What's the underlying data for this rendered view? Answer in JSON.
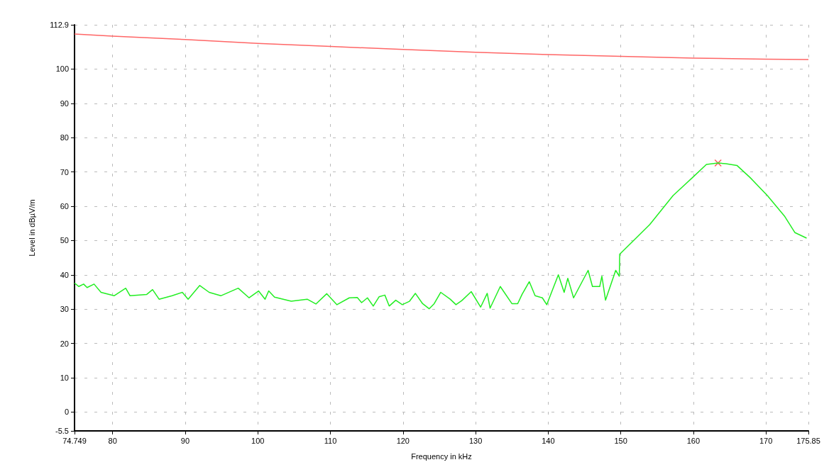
{
  "chart_data": {
    "type": "line",
    "xlabel": "Frequency in kHz",
    "ylabel": "Level in dBµV/m",
    "xlim": [
      74.749,
      175.85
    ],
    "xticks": [
      74.749,
      80,
      90,
      100,
      110,
      120,
      130,
      140,
      150,
      160,
      170,
      175.85
    ],
    "ylim": [
      -5.5,
      112.9
    ],
    "yticks": [
      -5.5,
      0,
      10,
      20,
      30,
      40,
      50,
      60,
      70,
      80,
      90,
      100,
      112.9
    ],
    "grid": true,
    "marker": "none",
    "line_style": "solid",
    "series": [
      {
        "color": "#ff6666",
        "x": [
          74.749,
          80,
          90,
          100,
          110,
          120,
          130,
          140,
          150,
          160,
          170,
          175.85
        ],
        "values": [
          110.2,
          109.6,
          108.6,
          107.5,
          106.6,
          105.7,
          104.9,
          104.2,
          103.7,
          103.2,
          102.9,
          102.8
        ]
      },
      {
        "color": "#22ee22",
        "x": [
          74.75,
          75.33,
          76.0,
          76.48,
          77.44,
          78.4,
          80.2,
          81.8,
          82.4,
          84.7,
          85.5,
          86.4,
          88.2,
          89.6,
          90.4,
          92.0,
          93.3,
          94.9,
          97.3,
          98.8,
          100.1,
          101.0,
          101.5,
          102.3,
          104.6,
          106.8,
          108.0,
          109.5,
          110.9,
          112.6,
          113.7,
          114.3,
          115.1,
          115.9,
          116.7,
          117.5,
          118.1,
          119.0,
          119.9,
          120.9,
          121.7,
          122.7,
          123.6,
          124.3,
          125.2,
          126.5,
          127.3,
          128.1,
          129.4,
          130.7,
          131.6,
          132.0,
          133.4,
          135.0,
          135.8,
          136.4,
          137.4,
          138.2,
          139.2,
          139.8,
          141.4,
          142.2,
          142.7,
          143.5,
          145.5,
          146.1,
          147.1,
          147.4,
          147.9,
          149.3,
          149.8,
          149.85,
          154.0,
          157.2,
          159.9,
          161.8,
          163.4,
          164.5,
          166.0,
          167.8,
          170.2,
          172.6,
          174.0,
          175.6
        ],
        "values": [
          37.6,
          36.6,
          37.3,
          36.3,
          37.3,
          34.9,
          33.9,
          36.1,
          33.9,
          34.3,
          35.7,
          32.9,
          33.9,
          34.9,
          32.9,
          36.9,
          34.9,
          33.9,
          36.1,
          33.3,
          35.3,
          32.9,
          35.3,
          33.5,
          32.3,
          32.9,
          31.5,
          34.5,
          31.3,
          33.3,
          33.4,
          31.9,
          33.3,
          30.9,
          33.6,
          34.1,
          30.9,
          32.6,
          31.3,
          32.3,
          34.6,
          31.6,
          30.1,
          31.6,
          34.9,
          32.9,
          31.3,
          32.5,
          35.1,
          30.6,
          34.6,
          30.3,
          36.6,
          31.6,
          31.6,
          34.3,
          38.0,
          33.9,
          33.3,
          31.3,
          40.0,
          34.9,
          39.0,
          33.3,
          41.3,
          36.6,
          36.6,
          39.6,
          32.6,
          41.3,
          39.6,
          46.0,
          54.7,
          63.1,
          68.4,
          72.2,
          72.6,
          72.4,
          71.9,
          68.4,
          63.1,
          57.0,
          52.3,
          50.7
        ]
      },
      {
        "type": "scatter",
        "marker": "cross",
        "color": "#ff3333",
        "x": [
          163.4
        ],
        "values": [
          72.6
        ]
      }
    ]
  }
}
